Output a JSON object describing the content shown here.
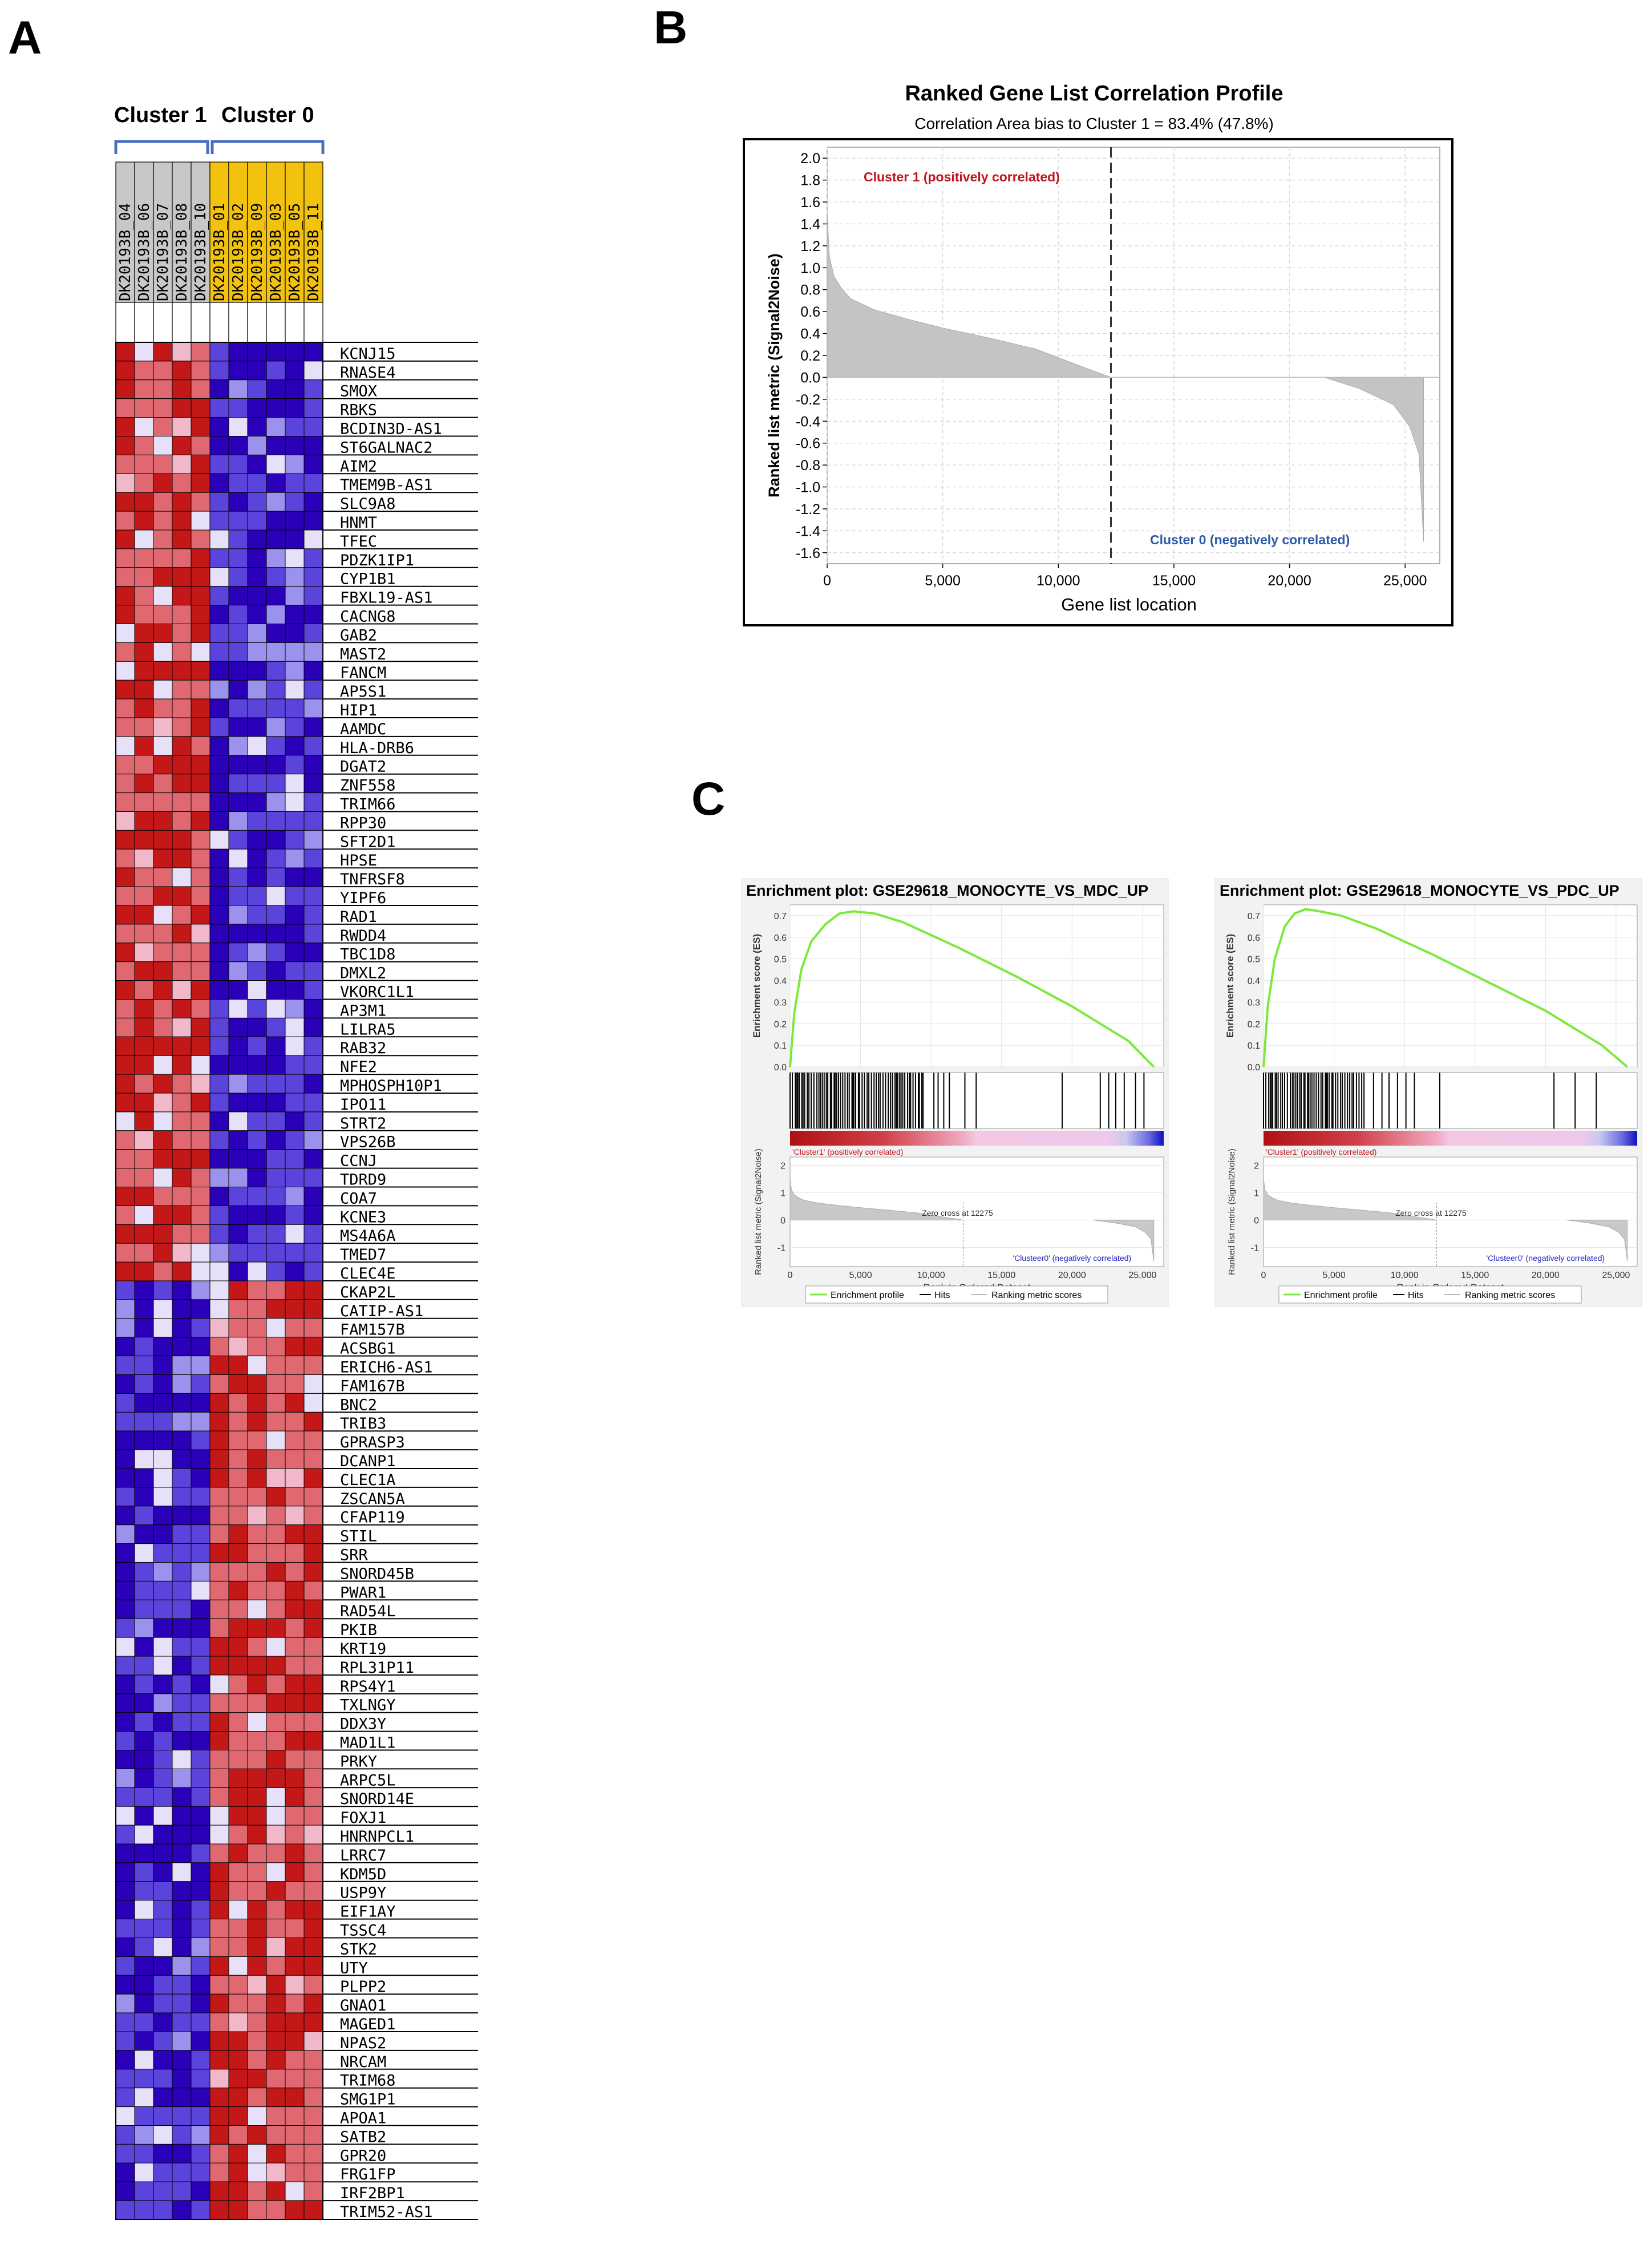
{
  "panels": {
    "a": "A",
    "b": "B",
    "c": "C"
  },
  "heatmap": {
    "cluster_labels": [
      "Cluster 1",
      "Cluster 0"
    ],
    "samples": [
      {
        "name": "DK20193B_04",
        "cluster": "1"
      },
      {
        "name": "DK20193B_06",
        "cluster": "1"
      },
      {
        "name": "DK20193B_07",
        "cluster": "1"
      },
      {
        "name": "DK20193B_08",
        "cluster": "1"
      },
      {
        "name": "DK20193B_10",
        "cluster": "1"
      },
      {
        "name": "DK20193B_01",
        "cluster": "0"
      },
      {
        "name": "DK20193B_02",
        "cluster": "0"
      },
      {
        "name": "DK20193B_09",
        "cluster": "0"
      },
      {
        "name": "DK20193B_03",
        "cluster": "0"
      },
      {
        "name": "DK20193B_05",
        "cluster": "0"
      },
      {
        "name": "DK20193B_11",
        "cluster": "0"
      }
    ],
    "colors": {
      "cluster1_header": "#c8c8c8",
      "cluster0_header": "#f2c20e",
      "bracket": "#4a6fc0"
    },
    "genes_up_cluster1": [
      "KCNJ15",
      "RNASE4",
      "SMOX",
      "RBKS",
      "BCDIN3D-AS1",
      "ST6GALNAC2",
      "AIM2",
      "TMEM9B-AS1",
      "SLC9A8",
      "HNMT",
      "TFEC",
      "PDZK1IP1",
      "CYP1B1",
      "FBXL19-AS1",
      "CACNG8",
      "GAB2",
      "MAST2",
      "FANCM",
      "AP5S1",
      "HIP1",
      "AAMDC",
      "HLA-DRB6",
      "DGAT2",
      "ZNF558",
      "TRIM66",
      "RPP30",
      "SFT2D1",
      "HPSE",
      "TNFRSF8",
      "YIPF6",
      "RAD1",
      "RWDD4",
      "TBC1D8",
      "DMXL2",
      "VKORC1L1",
      "AP3M1",
      "LILRA5",
      "RAB32",
      "NFE2",
      "MPHOSPH10P1",
      "IPO11",
      "STRT2",
      "VPS26B",
      "CCNJ",
      "TDRD9",
      "COA7",
      "KCNE3",
      "MS4A6A",
      "TMED7",
      "CLEC4E"
    ],
    "genes_up_cluster0": [
      "CKAP2L",
      "CATIP-AS1",
      "FAM157B",
      "ACSBG1",
      "ERICH6-AS1",
      "FAM167B",
      "BNC2",
      "TRIB3",
      "GPRASP3",
      "DCANP1",
      "CLEC1A",
      "ZSCAN5A",
      "CFAP119",
      "STIL",
      "SRR",
      "SNORD45B",
      "PWAR1",
      "RAD54L",
      "PKIB",
      "KRT19",
      "RPL31P11",
      "RPS4Y1",
      "TXLNGY",
      "DDX3Y",
      "MAD1L1",
      "PRKY",
      "ARPC5L",
      "SNORD14E",
      "FOXJ1",
      "HNRNPCL1",
      "LRRC7",
      "KDM5D",
      "USP9Y",
      "EIF1AY",
      "TSSC4",
      "STK2",
      "UTY",
      "PLPP2",
      "GNAO1",
      "MAGED1",
      "NPAS2",
      "NRCAM",
      "TRIM68",
      "SMG1P1",
      "APOA1",
      "SATB2",
      "GPR20",
      "FRG1FP",
      "IRF2BP1",
      "TRIM52-AS1"
    ]
  },
  "profile": {
    "title": "Ranked Gene List Correlation Profile",
    "subtitle": "Correlation Area bias to Cluster 1 = 83.4% (47.8%)",
    "pos_label": "Cluster 1 (positively correlated)",
    "neg_label": "Cluster 0 (negatively correlated)",
    "colors": {
      "pos": "#c0161c",
      "neg": "#2b5bab",
      "fill": "#c4c4c4"
    }
  },
  "enrichment": [
    {
      "title": "Enrichment plot: GSE29618_MONOCYTE_VS_MDC_UP",
      "zero_cross": "Zero cross at 12275",
      "pos_tag": "'Cluster1' (positively correlated)",
      "neg_tag": "'Clusteer0' (negatively correlated)"
    },
    {
      "title": "Enrichment plot: GSE29618_MONOCYTE_VS_PDC_UP",
      "zero_cross": "Zero cross at 12275",
      "pos_tag": "'Cluster1' (positively correlated)",
      "neg_tag": "'Clusteer0' (negatively correlated)"
    }
  ],
  "legend": [
    "Enrichment profile",
    "Hits",
    "Ranking metric scores"
  ],
  "chart_data": [
    {
      "type": "heatmap",
      "rows": 100,
      "columns": 11,
      "color_scale": [
        "#2a00b8",
        "#ffffff",
        "#c00000"
      ],
      "description_rows": "top 50 genes higher in Cluster 1, bottom 50 genes higher in Cluster 0"
    },
    {
      "type": "area",
      "title": "Ranked Gene List Correlation Profile",
      "xlabel": "Gene list location",
      "ylabel": "Ranked list metric (Signal2Noise)",
      "xlim": [
        0,
        26500
      ],
      "ylim": [
        -1.7,
        2.1
      ],
      "xticks": [
        0,
        5000,
        10000,
        15000,
        20000,
        25000
      ],
      "xtick_labels": [
        "0",
        "5,000",
        "10,000",
        "15,000",
        "20,000",
        "25,000"
      ],
      "yticks": [
        2.0,
        1.8,
        1.6,
        1.4,
        1.2,
        1.0,
        0.8,
        0.6,
        0.4,
        0.2,
        0.0,
        -0.2,
        -0.4,
        -0.6,
        -0.8,
        -1.0,
        -1.2,
        -1.4,
        -1.6
      ],
      "ytick_labels": [
        "2.0",
        "1.8",
        "1.6",
        "1.4",
        "1.2",
        "1.0",
        "0.8",
        "0.6",
        "0.4",
        "0.2",
        "0.0",
        "-0.2",
        "-0.4",
        "-0.6",
        "-0.8",
        "-1.0",
        "-1.2",
        "-1.4",
        "-1.6"
      ],
      "zero_cross": 12275,
      "x": [
        0,
        100,
        300,
        600,
        1000,
        2000,
        3500,
        5000,
        7000,
        9000,
        11000,
        12275,
        21500,
        23000,
        24500,
        25200,
        25600,
        25800
      ],
      "y": [
        1.5,
        1.1,
        0.92,
        0.82,
        0.72,
        0.62,
        0.53,
        0.45,
        0.36,
        0.26,
        0.1,
        0.0,
        0.0,
        -0.1,
        -0.25,
        -0.45,
        -0.7,
        -1.5
      ],
      "grid": true
    },
    {
      "type": "line",
      "title": "Enrichment plot: GSE29618_MONOCYTE_VS_MDC_UP",
      "xlabel": "Rank in Ordered Dataset",
      "ylabel": "Enrichment score (ES)",
      "ylabel_bottom": "Ranked list metric (Signal2Noise)",
      "xlim": [
        0,
        26500
      ],
      "ylim": [
        0,
        0.75
      ],
      "yticks": [
        0.0,
        0.1,
        0.2,
        0.3,
        0.4,
        0.5,
        0.6,
        0.7
      ],
      "xticks": [
        0,
        5000,
        10000,
        15000,
        20000,
        25000
      ],
      "xtick_labels": [
        "0",
        "5,000",
        "10,000",
        "15,000",
        "20,000",
        "25,000"
      ],
      "metric_yticks": [
        "2",
        "1",
        "0",
        "-1"
      ],
      "x": [
        0,
        300,
        800,
        1500,
        2500,
        3500,
        4500,
        6000,
        8000,
        12000,
        16000,
        20000,
        24000,
        25800
      ],
      "y": [
        0.0,
        0.25,
        0.45,
        0.58,
        0.66,
        0.71,
        0.72,
        0.71,
        0.67,
        0.55,
        0.42,
        0.28,
        0.12,
        0.0
      ],
      "hits_dense": [
        0,
        9500
      ],
      "hits_extra": [
        10200,
        10500,
        10900,
        11300,
        12400,
        13200,
        19300,
        22000,
        22600,
        23100,
        23700,
        24500,
        25100
      ],
      "color": "#7de83e"
    },
    {
      "type": "line",
      "title": "Enrichment plot: GSE29618_MONOCYTE_VS_PDC_UP",
      "xlabel": "Rank in Ordered Dataset",
      "ylabel": "Enrichment score (ES)",
      "ylabel_bottom": "Ranked list metric (Signal2Noise)",
      "xlim": [
        0,
        26500
      ],
      "ylim": [
        0,
        0.75
      ],
      "yticks": [
        0.0,
        0.1,
        0.2,
        0.3,
        0.4,
        0.5,
        0.6,
        0.7
      ],
      "xticks": [
        0,
        5000,
        10000,
        15000,
        20000,
        25000
      ],
      "xtick_labels": [
        "0",
        "5,000",
        "10,000",
        "15,000",
        "20,000",
        "25,000"
      ],
      "metric_yticks": [
        "2",
        "1",
        "0",
        "-1"
      ],
      "x": [
        0,
        300,
        800,
        1500,
        2200,
        3000,
        4000,
        5500,
        8000,
        12000,
        16000,
        20000,
        24000,
        25800
      ],
      "y": [
        0.0,
        0.28,
        0.5,
        0.65,
        0.71,
        0.73,
        0.72,
        0.7,
        0.64,
        0.52,
        0.39,
        0.26,
        0.1,
        0.0
      ],
      "hits_dense": [
        0,
        7200
      ],
      "hits_extra": [
        7800,
        8400,
        8900,
        9500,
        10100,
        10700,
        12500,
        20600,
        22100,
        23600
      ],
      "color": "#7de83e"
    }
  ]
}
